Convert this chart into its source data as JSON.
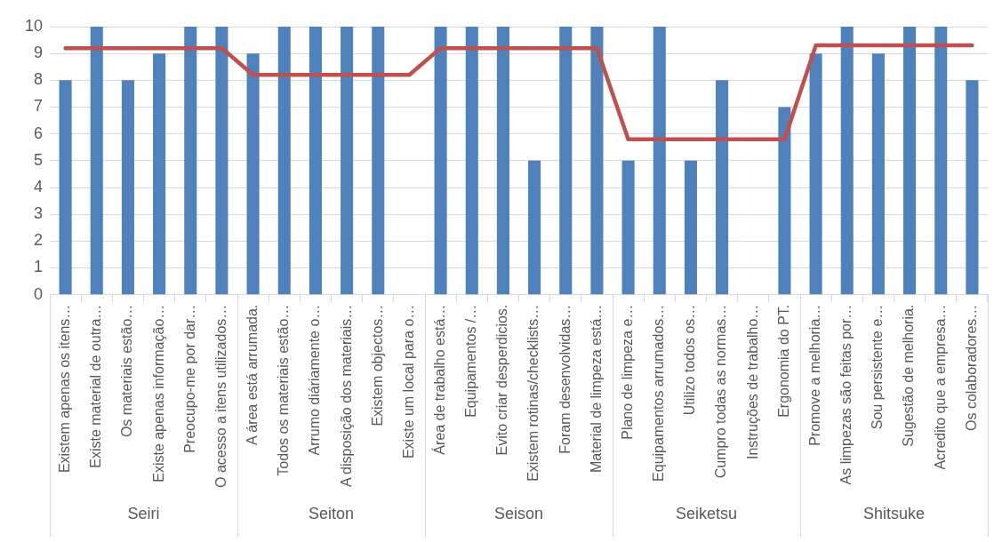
{
  "chart_data": {
    "type": "bar",
    "categories": [
      "Existem apenas os itens…",
      "Existe material de outra…",
      "Os materiais estão…",
      "Existe apenas informação…",
      "Preocupo-me por dar…",
      "O acesso a itens utilizados…",
      "A área está arrumada.",
      "Todos os materiais estão…",
      "Arrumo diáriamente o…",
      "A disposição dos materiais…",
      "Existem objectos…",
      "Existe um local para o…",
      "Área de trabalho está…",
      "Equipamentos /…",
      "Evito criar desperdicios.",
      "Existem rotinas/checklists…",
      "Foram desenvolvidas…",
      "Material de limpeza está…",
      "Plano de limpeza e…",
      "Equipamentos arrumados…",
      "Utilizo todos os…",
      "Cumpro todas as normas…",
      "Instruções de trabalho…",
      "Ergonomia do PT.",
      "Promove a melhoria…",
      "As limpezas são feitas por…",
      "Sou persistente e…",
      "Sugestão de melhoria.",
      "Acredito que a empresa…",
      "Os colaboradores…"
    ],
    "series": [
      {
        "color": "#4f81bd",
        "values": [
          8,
          10,
          8,
          9,
          10,
          10,
          9,
          10,
          10,
          10,
          10,
          0,
          10,
          10,
          10,
          5,
          10,
          10,
          5,
          10,
          5,
          8,
          0,
          7,
          9,
          10,
          9,
          10,
          10,
          8
        ]
      },
      {
        "type": "line",
        "color": "#c0504d",
        "values": [
          9.2,
          9.2,
          9.2,
          9.2,
          9.2,
          9.2,
          8.2,
          8.2,
          8.2,
          8.2,
          8.2,
          8.2,
          9.2,
          9.2,
          9.2,
          9.2,
          9.2,
          9.2,
          5.8,
          5.8,
          5.8,
          5.8,
          5.8,
          5.8,
          9.3,
          9.3,
          9.3,
          9.3,
          9.3,
          9.3
        ]
      }
    ],
    "ylim": [
      0,
      10
    ],
    "yticks": [
      0,
      1,
      2,
      3,
      4,
      5,
      6,
      7,
      8,
      9,
      10
    ],
    "grid": "y",
    "annotations": [
      "Seiri",
      "Seiton",
      "Seison",
      "Seiketsu",
      "Shitsuke"
    ]
  }
}
